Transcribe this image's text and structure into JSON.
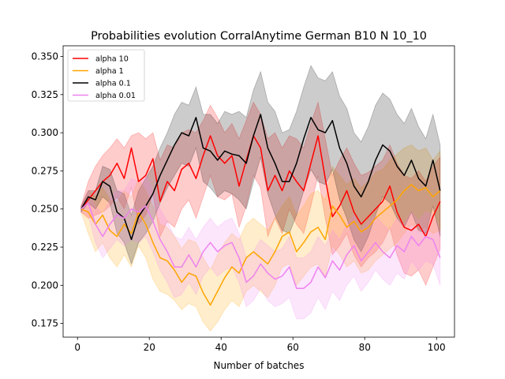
{
  "chart_data": {
    "type": "line",
    "title": "Probabilities evolution CorralAnytime German B10 N 10_10",
    "xlabel": "Number of batches",
    "ylabel": "",
    "xlim": [
      -4,
      105
    ],
    "ylim": [
      0.166,
      0.357
    ],
    "xticks": [
      0,
      20,
      40,
      60,
      80,
      100
    ],
    "yticks": [
      0.175,
      0.2,
      0.225,
      0.25,
      0.275,
      0.3,
      0.325,
      0.35
    ],
    "ytick_labels": [
      "0.175",
      "0.200",
      "0.225",
      "0.250",
      "0.275",
      "0.300",
      "0.325",
      "0.350"
    ],
    "legend_position": "upper-left",
    "grid": false,
    "series": [
      {
        "name": "alpha 10",
        "color": "#ff0000",
        "x": [
          1,
          3,
          5,
          7,
          9,
          11,
          13,
          15,
          17,
          19,
          21,
          23,
          25,
          27,
          29,
          31,
          33,
          35,
          37,
          39,
          41,
          43,
          45,
          47,
          49,
          51,
          53,
          55,
          57,
          59,
          61,
          63,
          65,
          67,
          69,
          71,
          73,
          75,
          77,
          79,
          81,
          83,
          85,
          87,
          89,
          91,
          93,
          95,
          97,
          99,
          101
        ],
        "values": [
          0.25,
          0.256,
          0.262,
          0.268,
          0.272,
          0.28,
          0.27,
          0.29,
          0.268,
          0.272,
          0.283,
          0.255,
          0.268,
          0.262,
          0.276,
          0.28,
          0.27,
          0.285,
          0.298,
          0.285,
          0.28,
          0.285,
          0.265,
          0.282,
          0.298,
          0.29,
          0.262,
          0.272,
          0.262,
          0.275,
          0.268,
          0.262,
          0.28,
          0.298,
          0.27,
          0.245,
          0.252,
          0.262,
          0.248,
          0.24,
          0.245,
          0.25,
          0.255,
          0.265,
          0.248,
          0.238,
          0.236,
          0.24,
          0.232,
          0.245,
          0.255
        ],
        "upper": [
          0.252,
          0.268,
          0.278,
          0.285,
          0.29,
          0.296,
          0.29,
          0.298,
          0.3,
          0.296,
          0.3,
          0.282,
          0.292,
          0.29,
          0.3,
          0.302,
          0.3,
          0.308,
          0.318,
          0.31,
          0.3,
          0.306,
          0.296,
          0.308,
          0.32,
          0.312,
          0.296,
          0.3,
          0.29,
          0.298,
          0.296,
          0.29,
          0.306,
          0.32,
          0.296,
          0.272,
          0.282,
          0.29,
          0.28,
          0.272,
          0.274,
          0.278,
          0.282,
          0.292,
          0.28,
          0.272,
          0.27,
          0.275,
          0.268,
          0.278,
          0.284
        ],
        "lower": [
          0.248,
          0.244,
          0.246,
          0.248,
          0.252,
          0.258,
          0.25,
          0.264,
          0.24,
          0.246,
          0.26,
          0.232,
          0.242,
          0.238,
          0.25,
          0.256,
          0.244,
          0.258,
          0.272,
          0.258,
          0.256,
          0.26,
          0.238,
          0.252,
          0.272,
          0.264,
          0.232,
          0.244,
          0.234,
          0.25,
          0.24,
          0.234,
          0.252,
          0.272,
          0.244,
          0.22,
          0.226,
          0.234,
          0.22,
          0.212,
          0.218,
          0.222,
          0.228,
          0.238,
          0.22,
          0.208,
          0.206,
          0.21,
          0.2,
          0.212,
          0.224
        ]
      },
      {
        "name": "alpha 1",
        "color": "#ffa500",
        "x": [
          1,
          3,
          5,
          7,
          9,
          11,
          13,
          15,
          17,
          19,
          21,
          23,
          25,
          27,
          29,
          31,
          33,
          35,
          37,
          39,
          41,
          43,
          45,
          47,
          49,
          51,
          53,
          55,
          57,
          59,
          61,
          63,
          65,
          67,
          69,
          71,
          73,
          75,
          77,
          79,
          81,
          83,
          85,
          87,
          89,
          91,
          93,
          95,
          97,
          99,
          101
        ],
        "values": [
          0.25,
          0.248,
          0.24,
          0.246,
          0.236,
          0.232,
          0.24,
          0.234,
          0.248,
          0.24,
          0.228,
          0.218,
          0.216,
          0.21,
          0.202,
          0.208,
          0.206,
          0.195,
          0.187,
          0.196,
          0.205,
          0.212,
          0.208,
          0.218,
          0.222,
          0.218,
          0.214,
          0.222,
          0.232,
          0.235,
          0.222,
          0.228,
          0.235,
          0.238,
          0.23,
          0.252,
          0.246,
          0.238,
          0.242,
          0.235,
          0.238,
          0.244,
          0.248,
          0.252,
          0.256,
          0.262,
          0.266,
          0.262,
          0.264,
          0.258,
          0.262
        ],
        "upper": [
          0.252,
          0.262,
          0.258,
          0.264,
          0.256,
          0.254,
          0.262,
          0.258,
          0.27,
          0.262,
          0.252,
          0.24,
          0.238,
          0.232,
          0.224,
          0.23,
          0.228,
          0.218,
          0.21,
          0.22,
          0.228,
          0.234,
          0.23,
          0.24,
          0.244,
          0.24,
          0.236,
          0.244,
          0.252,
          0.258,
          0.246,
          0.252,
          0.26,
          0.262,
          0.256,
          0.278,
          0.272,
          0.266,
          0.27,
          0.264,
          0.268,
          0.274,
          0.276,
          0.282,
          0.286,
          0.29,
          0.292,
          0.288,
          0.29,
          0.282,
          0.288
        ],
        "lower": [
          0.248,
          0.234,
          0.222,
          0.228,
          0.218,
          0.212,
          0.22,
          0.212,
          0.226,
          0.218,
          0.204,
          0.196,
          0.194,
          0.19,
          0.184,
          0.188,
          0.186,
          0.176,
          0.17,
          0.176,
          0.184,
          0.19,
          0.186,
          0.196,
          0.2,
          0.196,
          0.192,
          0.2,
          0.212,
          0.214,
          0.2,
          0.206,
          0.212,
          0.214,
          0.206,
          0.226,
          0.22,
          0.212,
          0.216,
          0.208,
          0.21,
          0.216,
          0.22,
          0.224,
          0.228,
          0.234,
          0.24,
          0.236,
          0.238,
          0.234,
          0.236
        ]
      },
      {
        "name": "alpha 0.1",
        "color": "#000000",
        "x": [
          1,
          3,
          5,
          7,
          9,
          11,
          13,
          15,
          17,
          19,
          21,
          23,
          25,
          27,
          29,
          31,
          33,
          35,
          37,
          39,
          41,
          43,
          45,
          47,
          49,
          51,
          53,
          55,
          57,
          59,
          61,
          63,
          65,
          67,
          69,
          71,
          73,
          75,
          77,
          79,
          81,
          83,
          85,
          87,
          89,
          91,
          93,
          95,
          97,
          99,
          101
        ],
        "values": [
          0.25,
          0.258,
          0.256,
          0.268,
          0.265,
          0.248,
          0.244,
          0.23,
          0.245,
          0.252,
          0.26,
          0.272,
          0.282,
          0.292,
          0.3,
          0.298,
          0.31,
          0.29,
          0.288,
          0.282,
          0.288,
          0.286,
          0.285,
          0.28,
          0.298,
          0.312,
          0.29,
          0.28,
          0.268,
          0.268,
          0.28,
          0.296,
          0.31,
          0.302,
          0.3,
          0.308,
          0.29,
          0.28,
          0.265,
          0.258,
          0.268,
          0.282,
          0.292,
          0.288,
          0.278,
          0.272,
          0.282,
          0.27,
          0.265,
          0.282,
          0.262
        ],
        "upper": [
          0.252,
          0.262,
          0.262,
          0.278,
          0.276,
          0.262,
          0.26,
          0.246,
          0.262,
          0.27,
          0.278,
          0.29,
          0.3,
          0.312,
          0.32,
          0.318,
          0.33,
          0.312,
          0.312,
          0.306,
          0.314,
          0.312,
          0.314,
          0.31,
          0.328,
          0.34,
          0.32,
          0.314,
          0.3,
          0.302,
          0.314,
          0.33,
          0.344,
          0.336,
          0.334,
          0.34,
          0.324,
          0.316,
          0.3,
          0.294,
          0.304,
          0.318,
          0.326,
          0.322,
          0.312,
          0.306,
          0.316,
          0.304,
          0.296,
          0.312,
          0.292
        ],
        "lower": [
          0.248,
          0.254,
          0.25,
          0.258,
          0.254,
          0.234,
          0.228,
          0.214,
          0.228,
          0.234,
          0.242,
          0.254,
          0.264,
          0.272,
          0.28,
          0.278,
          0.29,
          0.268,
          0.264,
          0.258,
          0.262,
          0.26,
          0.256,
          0.25,
          0.268,
          0.284,
          0.26,
          0.246,
          0.236,
          0.234,
          0.246,
          0.262,
          0.276,
          0.268,
          0.266,
          0.276,
          0.256,
          0.244,
          0.23,
          0.222,
          0.232,
          0.246,
          0.258,
          0.254,
          0.244,
          0.238,
          0.248,
          0.236,
          0.234,
          0.252,
          0.232
        ]
      },
      {
        "name": "alpha 0.01",
        "color": "#ee82ee",
        "x": [
          1,
          3,
          5,
          7,
          9,
          11,
          13,
          15,
          17,
          19,
          21,
          23,
          25,
          27,
          29,
          31,
          33,
          35,
          37,
          39,
          41,
          43,
          45,
          47,
          49,
          51,
          53,
          55,
          57,
          59,
          61,
          63,
          65,
          67,
          69,
          71,
          73,
          75,
          77,
          79,
          81,
          83,
          85,
          87,
          89,
          91,
          93,
          95,
          97,
          99,
          101
        ],
        "values": [
          0.25,
          0.254,
          0.24,
          0.232,
          0.24,
          0.246,
          0.244,
          0.25,
          0.248,
          0.252,
          0.242,
          0.23,
          0.222,
          0.212,
          0.212,
          0.22,
          0.212,
          0.222,
          0.228,
          0.222,
          0.226,
          0.228,
          0.218,
          0.202,
          0.206,
          0.214,
          0.208,
          0.204,
          0.206,
          0.212,
          0.198,
          0.198,
          0.202,
          0.212,
          0.205,
          0.216,
          0.21,
          0.22,
          0.226,
          0.216,
          0.222,
          0.228,
          0.222,
          0.218,
          0.226,
          0.222,
          0.232,
          0.226,
          0.232,
          0.23,
          0.218
        ],
        "upper": [
          0.252,
          0.262,
          0.252,
          0.246,
          0.256,
          0.262,
          0.262,
          0.27,
          0.268,
          0.272,
          0.262,
          0.25,
          0.242,
          0.232,
          0.23,
          0.238,
          0.23,
          0.238,
          0.244,
          0.238,
          0.242,
          0.244,
          0.234,
          0.218,
          0.222,
          0.23,
          0.226,
          0.222,
          0.224,
          0.232,
          0.218,
          0.218,
          0.222,
          0.232,
          0.226,
          0.236,
          0.23,
          0.24,
          0.246,
          0.236,
          0.242,
          0.246,
          0.24,
          0.236,
          0.244,
          0.24,
          0.248,
          0.242,
          0.248,
          0.246,
          0.236
        ],
        "lower": [
          0.248,
          0.246,
          0.228,
          0.218,
          0.224,
          0.23,
          0.226,
          0.23,
          0.228,
          0.232,
          0.222,
          0.21,
          0.202,
          0.192,
          0.194,
          0.202,
          0.194,
          0.206,
          0.212,
          0.206,
          0.21,
          0.212,
          0.202,
          0.186,
          0.19,
          0.198,
          0.19,
          0.186,
          0.188,
          0.192,
          0.178,
          0.178,
          0.182,
          0.192,
          0.184,
          0.196,
          0.19,
          0.2,
          0.206,
          0.196,
          0.202,
          0.21,
          0.204,
          0.2,
          0.208,
          0.204,
          0.216,
          0.21,
          0.216,
          0.214,
          0.2
        ]
      }
    ]
  }
}
